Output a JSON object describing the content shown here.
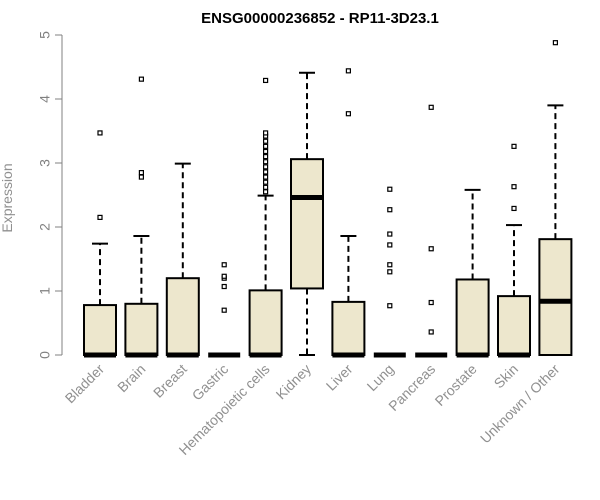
{
  "chart_data": {
    "type": "box",
    "title": "ENSG00000236852 - RP11-3D23.1",
    "ylabel": "Expression",
    "xlabel": "",
    "ylim": [
      0,
      5
    ],
    "yticks": [
      0,
      1,
      2,
      3,
      4,
      5
    ],
    "box_fill": "#ede7cd",
    "box_stroke": "#000000",
    "categories": [
      "Bladder",
      "Brain",
      "Breast",
      "Gastric",
      "Hematopoietic cells",
      "Kidney",
      "Liver",
      "Lung",
      "Pancreas",
      "Prostate",
      "Skin",
      "Unknown / Other"
    ],
    "boxes": [
      {
        "category": "Bladder",
        "q1": 0,
        "median": 0,
        "q3": 0.78,
        "whisker_low": 0,
        "whisker_high": 1.74,
        "outliers": [
          2.15,
          3.47
        ]
      },
      {
        "category": "Brain",
        "q1": 0,
        "median": 0,
        "q3": 0.8,
        "whisker_low": 0,
        "whisker_high": 1.86,
        "outliers": [
          2.78,
          2.85,
          4.31
        ]
      },
      {
        "category": "Breast",
        "q1": 0,
        "median": 0,
        "q3": 1.2,
        "whisker_low": 0,
        "whisker_high": 2.99,
        "outliers": []
      },
      {
        "category": "Gastric",
        "q1": 0,
        "median": 0,
        "q3": 0,
        "whisker_low": 0,
        "whisker_high": 0,
        "outliers": [
          0.7,
          1.07,
          1.2,
          1.23,
          1.41
        ]
      },
      {
        "category": "Hematopoietic cells",
        "q1": 0,
        "median": 0,
        "q3": 1.01,
        "whisker_low": 0,
        "whisker_high": 2.49,
        "outliers": [
          2.55,
          2.62,
          2.7,
          2.78,
          2.86,
          2.94,
          3.02,
          3.1,
          3.18,
          3.26,
          3.34,
          3.42,
          3.47,
          4.29
        ]
      },
      {
        "category": "Kidney",
        "q1": 1.04,
        "median": 2.46,
        "q3": 3.06,
        "whisker_low": 0,
        "whisker_high": 4.41,
        "outliers": []
      },
      {
        "category": "Liver",
        "q1": 0,
        "median": 0,
        "q3": 0.83,
        "whisker_low": 0,
        "whisker_high": 1.86,
        "outliers": [
          3.77,
          4.44
        ]
      },
      {
        "category": "Lung",
        "q1": 0,
        "median": 0,
        "q3": 0,
        "whisker_low": 0,
        "whisker_high": 0,
        "outliers": [
          0.77,
          1.3,
          1.41,
          1.72,
          1.89,
          2.27,
          2.59
        ]
      },
      {
        "category": "Pancreas",
        "q1": 0,
        "median": 0,
        "q3": 0,
        "whisker_low": 0,
        "whisker_high": 0,
        "outliers": [
          0.36,
          0.82,
          1.66,
          3.87
        ]
      },
      {
        "category": "Prostate",
        "q1": 0,
        "median": 0,
        "q3": 1.18,
        "whisker_low": 0,
        "whisker_high": 2.58,
        "outliers": []
      },
      {
        "category": "Skin",
        "q1": 0,
        "median": 0,
        "q3": 0.92,
        "whisker_low": 0,
        "whisker_high": 2.03,
        "outliers": [
          2.29,
          2.63,
          3.26
        ]
      },
      {
        "category": "Unknown / Other",
        "q1": 0,
        "median": 0.84,
        "q3": 1.81,
        "whisker_low": 0,
        "whisker_high": 3.9,
        "outliers": [
          4.88
        ]
      }
    ]
  }
}
